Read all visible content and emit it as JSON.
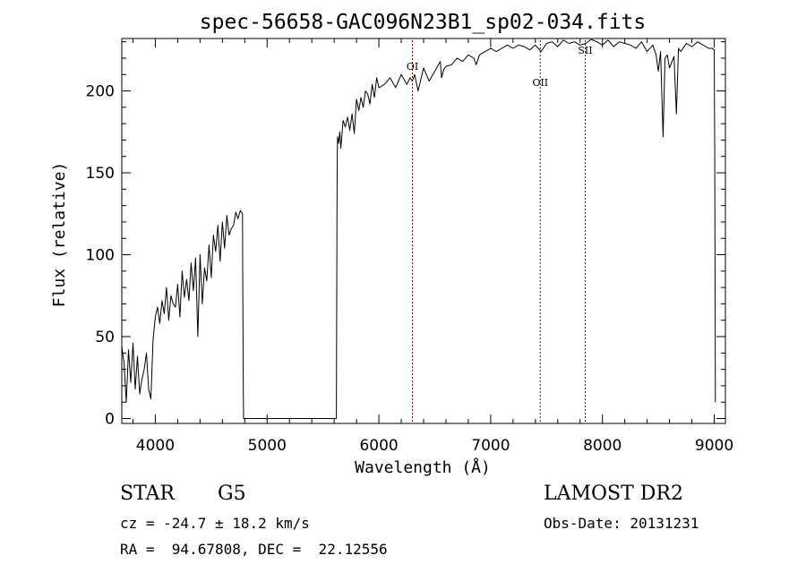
{
  "chart_data": {
    "type": "line",
    "title": "spec-56658-GAC096N23B1_sp02-034.fits",
    "xlabel": "Wavelength (Å)",
    "ylabel": "Flux (relative)",
    "xlim": [
      3700,
      9100
    ],
    "ylim": [
      -3,
      232
    ],
    "xticks": [
      4000,
      5000,
      6000,
      7000,
      8000,
      9000
    ],
    "yticks": [
      0,
      50,
      100,
      150,
      200
    ],
    "grid": false,
    "line_color": "#000000",
    "series": [
      {
        "x": [
          3700,
          3720,
          3740,
          3760,
          3780,
          3800,
          3820,
          3840,
          3860,
          3880,
          3900,
          3920,
          3940,
          3960,
          3980,
          4000,
          4020,
          4040,
          4060,
          4080,
          4100,
          4120,
          4140,
          4160,
          4180,
          4200,
          4220,
          4240,
          4260,
          4280,
          4300,
          4320,
          4340,
          4360,
          4380,
          4400,
          4420,
          4440,
          4460,
          4480,
          4500,
          4520,
          4540,
          4560,
          4580,
          4600,
          4620,
          4640,
          4660,
          4680,
          4700,
          4720,
          4740,
          4760,
          4780,
          4782,
          4784,
          4786,
          4788,
          4790,
          5620,
          5625,
          5628,
          5630,
          5640,
          5650,
          5660,
          5680,
          5700,
          5720,
          5740,
          5760,
          5780,
          5800,
          5820,
          5840,
          5860,
          5880,
          5900,
          5920,
          5940,
          5960,
          5980,
          6000,
          6050,
          6100,
          6150,
          6200,
          6250,
          6280,
          6300,
          6320,
          6350,
          6400,
          6450,
          6500,
          6550,
          6560,
          6580,
          6600,
          6650,
          6700,
          6750,
          6800,
          6850,
          6870,
          6900,
          6950,
          7000,
          7050,
          7100,
          7150,
          7200,
          7250,
          7300,
          7350,
          7400,
          7450,
          7500,
          7550,
          7600,
          7650,
          7700,
          7750,
          7800,
          7850,
          7900,
          7950,
          8000,
          8050,
          8100,
          8150,
          8200,
          8250,
          8300,
          8350,
          8400,
          8450,
          8480,
          8500,
          8520,
          8542,
          8560,
          8580,
          8600,
          8640,
          8662,
          8680,
          8700,
          8750,
          8800,
          8850,
          8900,
          8950,
          8980,
          9000,
          9005,
          9008,
          9010
        ],
        "y": [
          44,
          34,
          10,
          42,
          22,
          46,
          18,
          38,
          15,
          24,
          30,
          40,
          18,
          12,
          48,
          62,
          68,
          58,
          72,
          64,
          80,
          60,
          75,
          70,
          68,
          82,
          62,
          90,
          74,
          85,
          72,
          95,
          78,
          98,
          50,
          100,
          70,
          92,
          84,
          106,
          86,
          112,
          102,
          118,
          96,
          120,
          104,
          124,
          112,
          116,
          118,
          126,
          122,
          127,
          125,
          90,
          60,
          30,
          10,
          0,
          0,
          130,
          160,
          172,
          168,
          175,
          165,
          182,
          178,
          184,
          176,
          186,
          174,
          195,
          188,
          196,
          190,
          200,
          198,
          192,
          204,
          196,
          208,
          202,
          204,
          208,
          202,
          210,
          204,
          208,
          206,
          210,
          200,
          214,
          206,
          212,
          218,
          208,
          213,
          215,
          216,
          220,
          218,
          222,
          220,
          216,
          222,
          224,
          226,
          224,
          226,
          228,
          226,
          228,
          227,
          225,
          228,
          224,
          229,
          230,
          227,
          231,
          229,
          230,
          228,
          229,
          232,
          230,
          228,
          231,
          227,
          230,
          229,
          228,
          226,
          230,
          224,
          228,
          222,
          212,
          224,
          172,
          220,
          222,
          214,
          221,
          186,
          226,
          224,
          229,
          227,
          230,
          228,
          226,
          226,
          225,
          160,
          80,
          10
        ]
      }
    ],
    "reference_lines": [
      {
        "label": "OI",
        "x": 6300
      },
      {
        "label": "OII",
        "x": 7444
      },
      {
        "label": "SII",
        "x": 7846
      }
    ]
  },
  "info": {
    "class_label": "STAR",
    "subclass": "G5",
    "survey": "LAMOST DR2",
    "cz_line": "cz = -24.7 ± 18.2 km/s",
    "obs_date": "Obs-Date: 20131231",
    "radec": "RA =  94.67808, DEC =  22.12556"
  }
}
